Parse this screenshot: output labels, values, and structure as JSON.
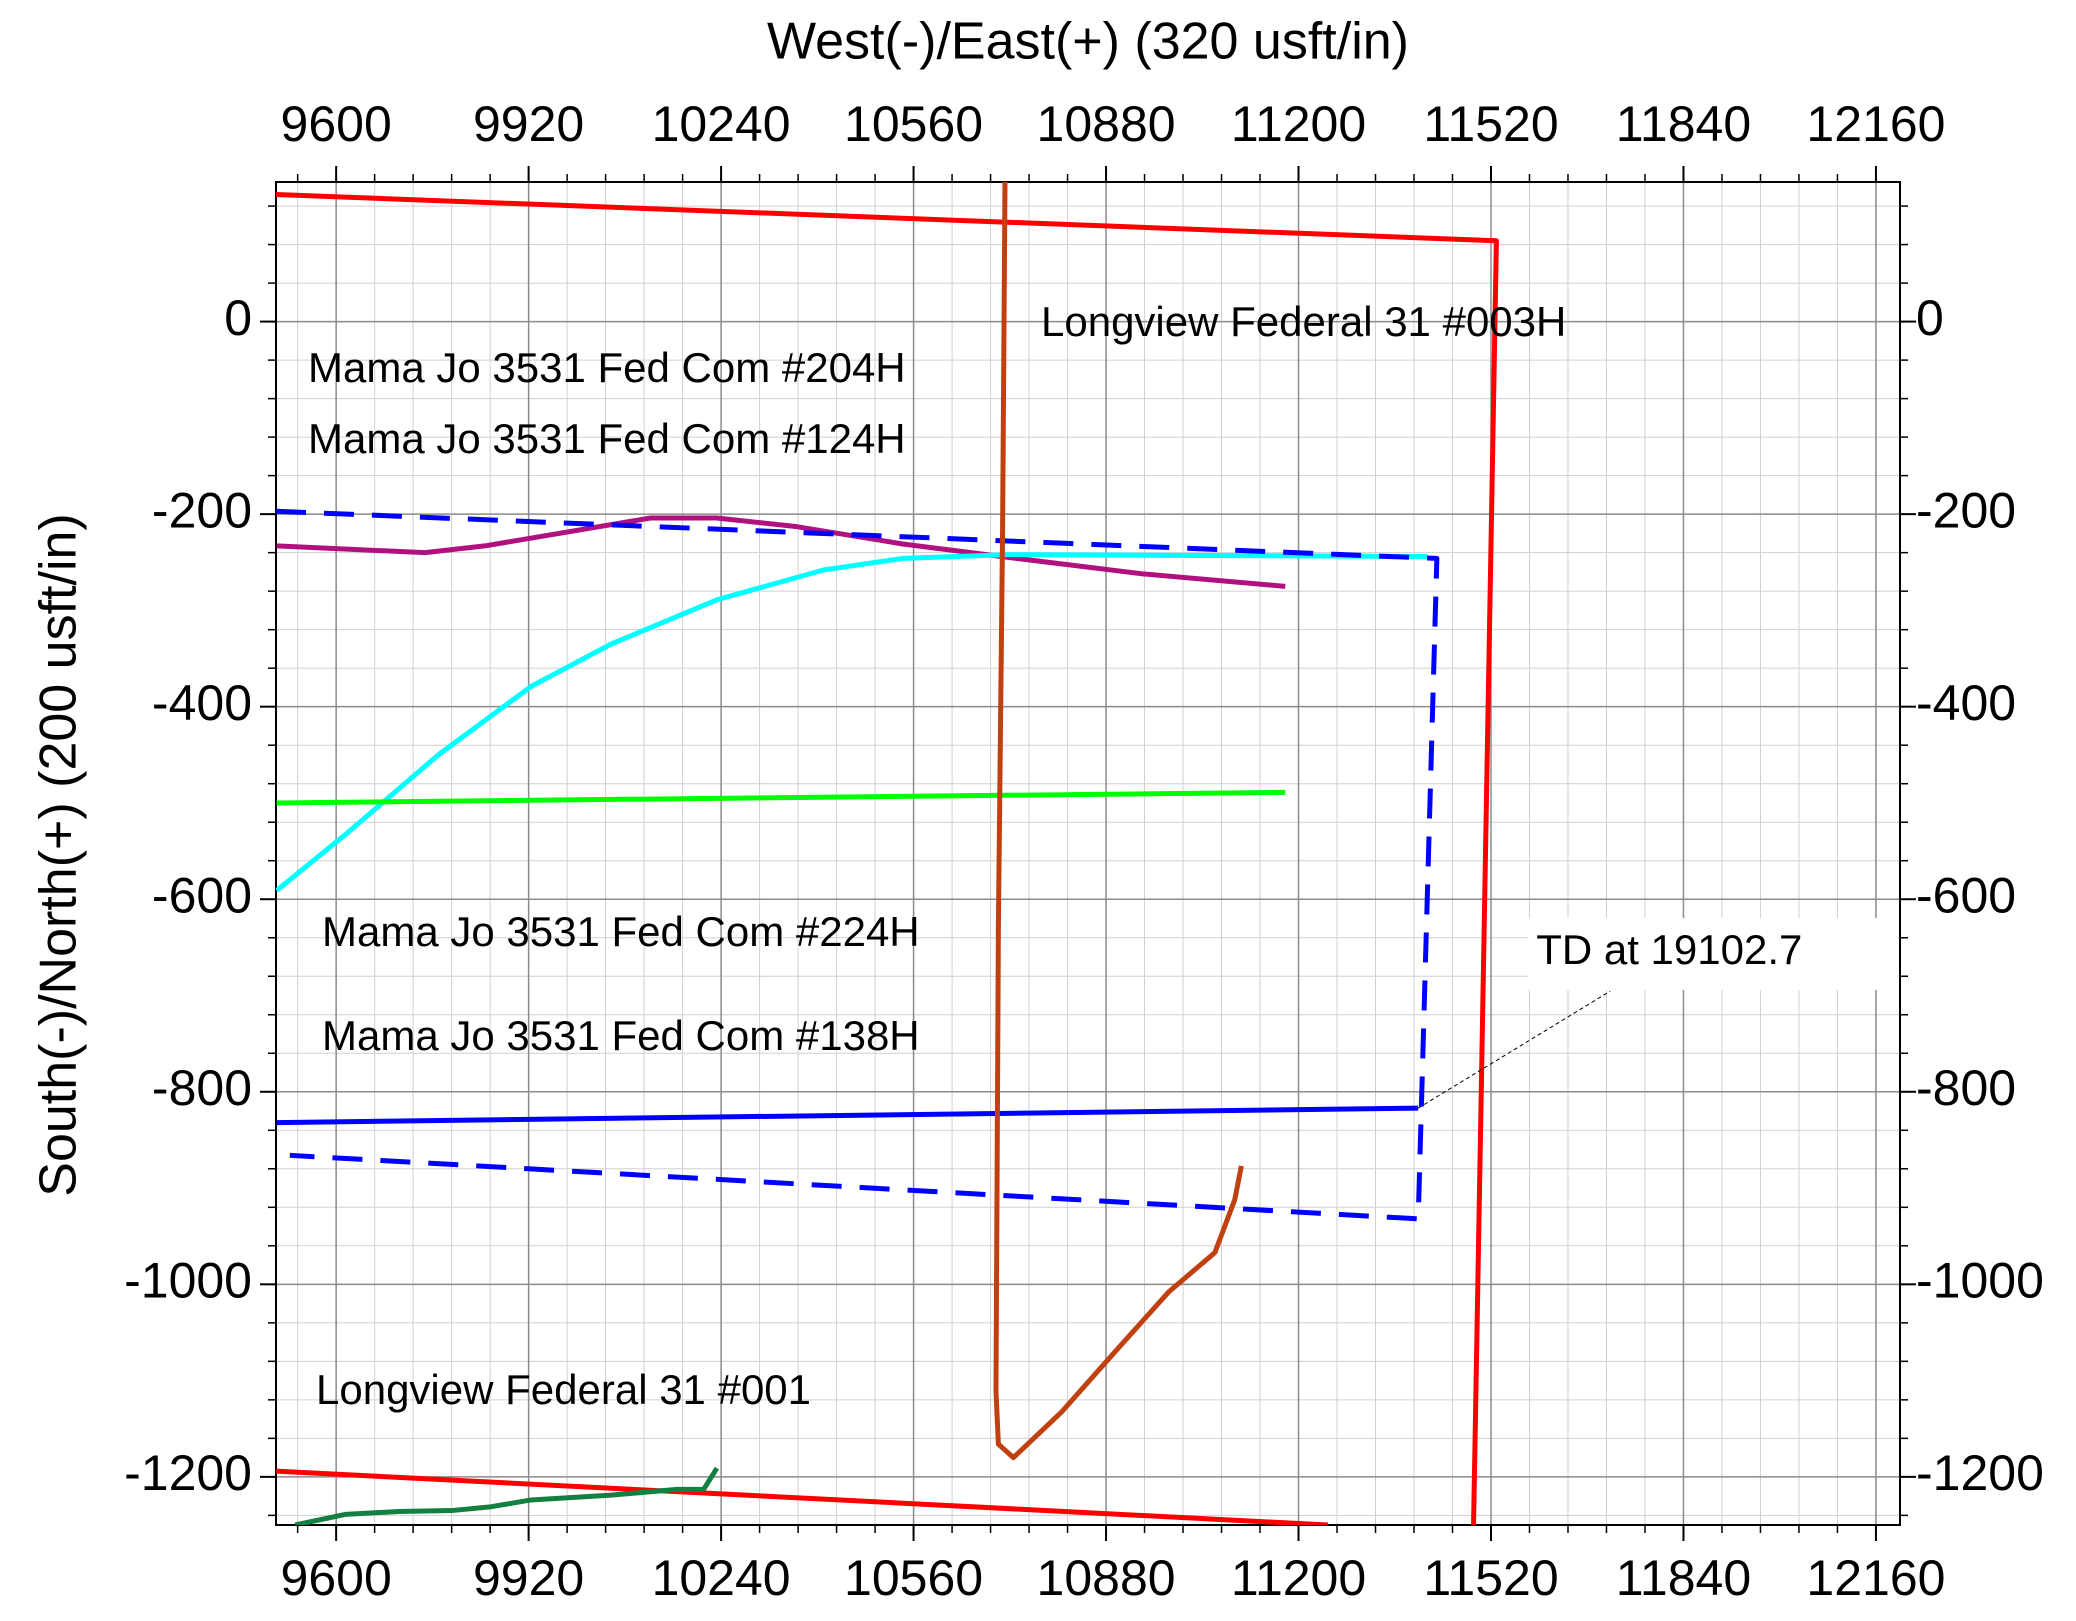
{
  "chart_data": {
    "type": "line",
    "xlabel": "West(-)/East(+) (320 usft/in)",
    "ylabel": "South(-)/North(+) (200 usft/in)",
    "xlim": [
      9500,
      12200
    ],
    "ylim": [
      -1250,
      145
    ],
    "xticks": [
      9600,
      9920,
      10240,
      10560,
      10880,
      11200,
      11520,
      11840,
      12160
    ],
    "yticks": [
      -1200,
      -1000,
      -800,
      -600,
      -400,
      -200,
      0
    ],
    "grid": true,
    "series": [
      {
        "color": "#ff0000",
        "x": [
          9500,
          11529,
          11491
        ],
        "values": [
          132,
          84,
          -1250
        ]
      },
      {
        "color": "#ff0000",
        "x": [
          9500,
          11249
        ],
        "values": [
          -1194,
          -1250
        ]
      },
      {
        "name": "Mama Jo 3531 Fed Com #204H",
        "color": "#b0117f",
        "x": [
          9501,
          9748,
          9847,
          10123,
          10233,
          10366,
          10542,
          10719,
          10940,
          11178
        ],
        "values": [
          -233,
          -240,
          -233,
          -204,
          -204,
          -213,
          -231,
          -245,
          -262,
          -275
        ]
      },
      {
        "name": "Mama Jo 3531 Fed Com #124H",
        "color": "#00ffff",
        "x": [
          9501,
          9615,
          9770,
          9924,
          10057,
          10233,
          10410,
          10542,
          10719,
          11414
        ],
        "values": [
          -591,
          -533,
          -450,
          -379,
          -335,
          -289,
          -258,
          -246,
          -242,
          -244
        ]
      },
      {
        "name": "Mama Jo 3531 Fed Com #224H",
        "color": "#00ff00",
        "x": [
          9501,
          11178
        ],
        "values": [
          -500,
          -489
        ]
      },
      {
        "color": "#0000ff",
        "dashed": true,
        "x": [
          9500,
          11430,
          11399,
          9523
        ],
        "values": [
          -197,
          -246,
          -932,
          -866
        ]
      },
      {
        "name": "Mama Jo 3531 Fed Com #138H",
        "color": "#0000ff",
        "x": [
          9501,
          11399
        ],
        "values": [
          -832,
          -817
        ]
      },
      {
        "name": "Longview Federal 31 #003H",
        "color": "#c04010",
        "x": [
          10712,
          10708,
          10701,
          10697,
          10701,
          10726,
          10807,
          10895,
          10984,
          11061,
          11094,
          11105
        ],
        "values": [
          145,
          -216,
          -629,
          -1111,
          -1166,
          -1180,
          -1132,
          -1070,
          -1008,
          -967,
          -912,
          -877
        ]
      },
      {
        "name": "Longview Federal 31 #001",
        "color": "#118040",
        "x": [
          9532,
          9615,
          9704,
          9792,
          9858,
          9924,
          10057,
          10167,
          10211,
          10233
        ],
        "values": [
          -1250,
          -1239,
          -1236,
          -1235,
          -1231,
          -1224,
          -1219,
          -1213,
          -1213,
          -1191
        ]
      }
    ],
    "annotations": [
      {
        "text": "TD at 19102.7",
        "x": 11399,
        "y": -817
      }
    ]
  }
}
